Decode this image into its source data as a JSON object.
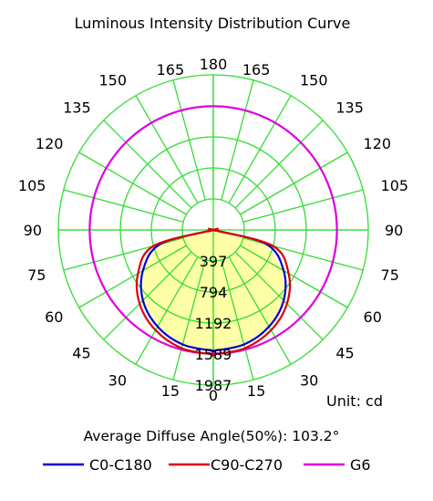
{
  "chart_data": {
    "type": "polar",
    "title": "Luminous Intensity Distribution Curve",
    "angle_labels_left": [
      "165",
      "150",
      "135",
      "120",
      "105",
      "90",
      "75",
      "60",
      "45",
      "30",
      "15"
    ],
    "angle_labels_right": [
      "165",
      "150",
      "135",
      "120",
      "105",
      "90",
      "75",
      "60",
      "45",
      "30",
      "15"
    ],
    "angle_label_top": "180",
    "angle_label_bottom": "0",
    "radial_ticks": [
      397,
      794,
      1192,
      1589,
      1987
    ],
    "radial_max": 1987,
    "unit": "Unit: cd",
    "average_angle_text": "Average Diffuse Angle(50%): 103.2°",
    "grid": true,
    "colors": {
      "grid": "#33dd33",
      "fill": "#ffffa8",
      "c0": "#0000cc",
      "c90": "#dd0000",
      "g6": "#e000e0"
    },
    "series": [
      {
        "name": "C0-C180",
        "color": "#0000cc",
        "angles": [
          0,
          15,
          30,
          45,
          60,
          75,
          90,
          105,
          120,
          135,
          150,
          165,
          180
        ],
        "values": [
          1548,
          1519,
          1429,
          1276,
          1042,
          706,
          0,
          0,
          0,
          0,
          0,
          0,
          0
        ]
      },
      {
        "name": "C90-C270",
        "color": "#dd0000",
        "angles": [
          0,
          15,
          30,
          45,
          60,
          75,
          90,
          105,
          120,
          135,
          150,
          165,
          180
        ],
        "values": [
          1596,
          1568,
          1482,
          1335,
          1115,
          792,
          0,
          0,
          0,
          0,
          0,
          0,
          0
        ]
      },
      {
        "name": "G6",
        "color": "#e000e0",
        "angles": [
          0,
          15,
          30,
          45,
          60,
          75,
          90,
          105,
          120,
          135,
          150,
          165,
          180
        ],
        "values": [
          1585,
          1585,
          1585,
          1585,
          1585,
          1585,
          1585,
          1585,
          1585,
          1585,
          1585,
          1585,
          1585
        ]
      }
    ]
  }
}
